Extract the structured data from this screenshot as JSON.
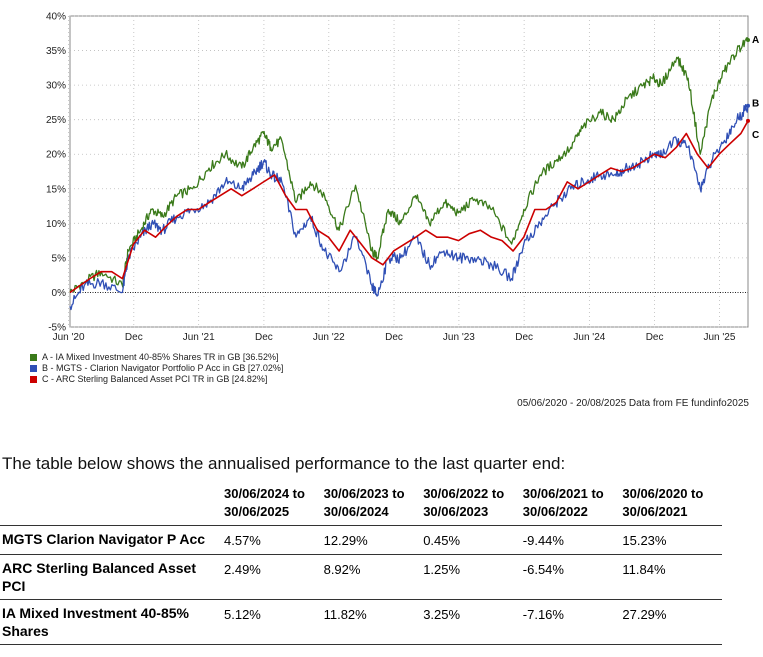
{
  "chart_data": {
    "type": "line",
    "ylim": [
      -5,
      40
    ],
    "y_ticks": [
      "40%",
      "35%",
      "30%",
      "25%",
      "20%",
      "15%",
      "10%",
      "5%",
      "0%",
      "-5%"
    ],
    "y_tick_values": [
      40,
      35,
      30,
      25,
      20,
      15,
      10,
      5,
      0,
      -5
    ],
    "x_ticks": [
      "Jun '20",
      "Dec",
      "Jun '21",
      "Dec",
      "Jun '22",
      "Dec",
      "Jun '23",
      "Dec",
      "Jun '24",
      "Dec",
      "Jun '25"
    ],
    "x_tick_values": [
      "2020-06",
      "2020-12",
      "2021-06",
      "2021-12",
      "2022-06",
      "2022-12",
      "2023-06",
      "2023-12",
      "2024-06",
      "2024-12",
      "2025-06"
    ],
    "x_range": [
      "2020-06-05",
      "2025-08-20"
    ],
    "grid": "dotted",
    "legend_position": "below",
    "series": [
      {
        "label": "A",
        "name": "A - IA Mixed Investment 40-85% Shares TR in GB [36.52%]",
        "color": "#3a7a1a",
        "points": [
          [
            "2020-06-05",
            0
          ],
          [
            "2020-07-15",
            1.5
          ],
          [
            "2020-09-01",
            3
          ],
          [
            "2020-10-30",
            1
          ],
          [
            "2020-11-15",
            6
          ],
          [
            "2020-12-20",
            9
          ],
          [
            "2021-01-20",
            12
          ],
          [
            "2021-02-20",
            11
          ],
          [
            "2021-04-01",
            14
          ],
          [
            "2021-05-15",
            15
          ],
          [
            "2021-06-30",
            18
          ],
          [
            "2021-08-15",
            20
          ],
          [
            "2021-09-30",
            18
          ],
          [
            "2021-11-01",
            21
          ],
          [
            "2021-11-30",
            23
          ],
          [
            "2021-12-20",
            21
          ],
          [
            "2022-01-20",
            22
          ],
          [
            "2022-03-01",
            13
          ],
          [
            "2022-04-10",
            16
          ],
          [
            "2022-05-20",
            14
          ],
          [
            "2022-06-30",
            9
          ],
          [
            "2022-08-15",
            15.5
          ],
          [
            "2022-09-30",
            6
          ],
          [
            "2022-10-15",
            5
          ],
          [
            "2022-11-15",
            12
          ],
          [
            "2022-12-20",
            10
          ],
          [
            "2023-01-30",
            14
          ],
          [
            "2023-03-10",
            10
          ],
          [
            "2023-04-20",
            13
          ],
          [
            "2023-05-30",
            11.5
          ],
          [
            "2023-07-15",
            13.5
          ],
          [
            "2023-09-01",
            12
          ],
          [
            "2023-10-27",
            7
          ],
          [
            "2023-11-30",
            12
          ],
          [
            "2024-01-15",
            17
          ],
          [
            "2024-02-28",
            19
          ],
          [
            "2024-04-10",
            21
          ],
          [
            "2024-05-15",
            24
          ],
          [
            "2024-06-30",
            26
          ],
          [
            "2024-08-10",
            25
          ],
          [
            "2024-09-15",
            28
          ],
          [
            "2024-10-30",
            30
          ],
          [
            "2024-11-30",
            31
          ],
          [
            "2024-12-20",
            30
          ],
          [
            "2025-02-01",
            34
          ],
          [
            "2025-03-05",
            31
          ],
          [
            "2025-04-08",
            20
          ],
          [
            "2025-05-10",
            28
          ],
          [
            "2025-06-15",
            32
          ],
          [
            "2025-07-20",
            35
          ],
          [
            "2025-08-20",
            36.52
          ]
        ]
      },
      {
        "label": "B",
        "name": "B - MGTS - Clarion Navigator Portfolio P Acc in GB [27.02%]",
        "color": "#2f4fb5",
        "points": [
          [
            "2020-06-05",
            -2
          ],
          [
            "2020-07-15",
            1
          ],
          [
            "2020-09-01",
            1.5
          ],
          [
            "2020-10-30",
            0
          ],
          [
            "2020-11-15",
            5
          ],
          [
            "2020-12-20",
            8
          ],
          [
            "2021-01-20",
            10
          ],
          [
            "2021-02-20",
            9
          ],
          [
            "2021-04-01",
            11
          ],
          [
            "2021-05-15",
            12
          ],
          [
            "2021-06-30",
            13
          ],
          [
            "2021-08-15",
            16
          ],
          [
            "2021-09-30",
            15
          ],
          [
            "2021-11-01",
            17
          ],
          [
            "2021-11-30",
            19
          ],
          [
            "2021-12-20",
            17
          ],
          [
            "2022-01-20",
            16
          ],
          [
            "2022-03-01",
            8
          ],
          [
            "2022-04-10",
            11
          ],
          [
            "2022-05-20",
            6
          ],
          [
            "2022-06-30",
            3
          ],
          [
            "2022-08-15",
            8
          ],
          [
            "2022-09-30",
            1
          ],
          [
            "2022-10-15",
            -0.5
          ],
          [
            "2022-11-15",
            5
          ],
          [
            "2022-12-20",
            5
          ],
          [
            "2023-01-30",
            8
          ],
          [
            "2023-03-10",
            4
          ],
          [
            "2023-04-20",
            6
          ],
          [
            "2023-05-30",
            5
          ],
          [
            "2023-07-15",
            5
          ],
          [
            "2023-09-01",
            4
          ],
          [
            "2023-10-27",
            2
          ],
          [
            "2023-11-30",
            7
          ],
          [
            "2024-01-15",
            10
          ],
          [
            "2024-02-28",
            13
          ],
          [
            "2024-04-10",
            15
          ],
          [
            "2024-05-15",
            16
          ],
          [
            "2024-06-30",
            17
          ],
          [
            "2024-08-10",
            17
          ],
          [
            "2024-09-15",
            18
          ],
          [
            "2024-10-30",
            19
          ],
          [
            "2024-11-30",
            20
          ],
          [
            "2024-12-20",
            20
          ],
          [
            "2025-02-01",
            22
          ],
          [
            "2025-03-05",
            21
          ],
          [
            "2025-04-08",
            15
          ],
          [
            "2025-05-10",
            19
          ],
          [
            "2025-06-15",
            22
          ],
          [
            "2025-07-20",
            25
          ],
          [
            "2025-08-20",
            27.02
          ]
        ]
      },
      {
        "label": "C",
        "name": "C - ARC Sterling Balanced Asset PCI TR in GB [24.82%]",
        "color": "#cc0000",
        "points": [
          [
            "2020-06-05",
            0
          ],
          [
            "2020-07-31",
            2
          ],
          [
            "2020-08-31",
            3
          ],
          [
            "2020-09-30",
            3
          ],
          [
            "2020-10-30",
            2
          ],
          [
            "2020-11-30",
            7
          ],
          [
            "2020-12-31",
            9
          ],
          [
            "2021-01-31",
            8
          ],
          [
            "2021-02-28",
            9.5
          ],
          [
            "2021-03-31",
            11
          ],
          [
            "2021-04-30",
            12
          ],
          [
            "2021-05-31",
            12
          ],
          [
            "2021-06-30",
            13
          ],
          [
            "2021-07-31",
            14
          ],
          [
            "2021-08-31",
            15
          ],
          [
            "2021-09-30",
            14
          ],
          [
            "2021-10-31",
            15
          ],
          [
            "2021-11-30",
            16
          ],
          [
            "2021-12-31",
            17
          ],
          [
            "2022-01-31",
            14
          ],
          [
            "2022-02-28",
            12
          ],
          [
            "2022-03-31",
            12
          ],
          [
            "2022-04-30",
            9
          ],
          [
            "2022-05-31",
            8
          ],
          [
            "2022-06-30",
            6
          ],
          [
            "2022-07-31",
            9
          ],
          [
            "2022-08-31",
            7
          ],
          [
            "2022-09-30",
            5
          ],
          [
            "2022-10-31",
            4
          ],
          [
            "2022-11-30",
            6
          ],
          [
            "2022-12-31",
            7
          ],
          [
            "2023-01-31",
            8
          ],
          [
            "2023-02-28",
            9
          ],
          [
            "2023-03-31",
            8
          ],
          [
            "2023-04-30",
            8
          ],
          [
            "2023-05-31",
            7.5
          ],
          [
            "2023-06-30",
            8.5
          ],
          [
            "2023-07-31",
            9
          ],
          [
            "2023-08-31",
            8
          ],
          [
            "2023-09-30",
            7.5
          ],
          [
            "2023-10-31",
            6
          ],
          [
            "2023-11-30",
            8
          ],
          [
            "2023-12-31",
            12
          ],
          [
            "2024-01-31",
            12
          ],
          [
            "2024-02-29",
            13
          ],
          [
            "2024-03-31",
            16
          ],
          [
            "2024-04-30",
            15
          ],
          [
            "2024-05-31",
            16
          ],
          [
            "2024-06-30",
            17
          ],
          [
            "2024-07-31",
            18
          ],
          [
            "2024-08-31",
            17.5
          ],
          [
            "2024-09-30",
            18
          ],
          [
            "2024-10-31",
            19
          ],
          [
            "2024-11-30",
            20
          ],
          [
            "2024-12-31",
            19.5
          ],
          [
            "2025-01-31",
            21
          ],
          [
            "2025-02-28",
            23
          ],
          [
            "2025-03-31",
            20
          ],
          [
            "2025-04-30",
            18
          ],
          [
            "2025-05-31",
            20
          ],
          [
            "2025-06-30",
            21.5
          ],
          [
            "2025-07-31",
            23
          ],
          [
            "2025-08-20",
            24.82
          ]
        ]
      }
    ]
  },
  "legend": [
    {
      "text": "A - IA Mixed Investment 40-85% Shares TR in GB [36.52%]",
      "color": "#3a7a1a"
    },
    {
      "text": "B - MGTS - Clarion Navigator Portfolio P Acc in GB [27.02%]",
      "color": "#2f4fb5"
    },
    {
      "text": "C - ARC Sterling Balanced Asset PCI TR in GB [24.82%]",
      "color": "#cc0000"
    }
  ],
  "source_note": "05/06/2020 - 20/08/2025 Data from FE fundinfo2025",
  "table_intro": "The table below shows the annualised performance to the last quarter end:",
  "table": {
    "headers": [
      "30/06/2024 to 30/06/2025",
      "30/06/2023 to 30/06/2024",
      "30/06/2022 to 30/06/2023",
      "30/06/2021 to 30/06/2022",
      "30/06/2020 to 30/06/2021"
    ],
    "rows": [
      {
        "name": "MGTS Clarion Navigator P Acc",
        "values": [
          "4.57%",
          "12.29%",
          "0.45%",
          "-9.44%",
          "15.23%"
        ]
      },
      {
        "name": "ARC Sterling Balanced Asset PCI",
        "values": [
          "2.49%",
          "8.92%",
          "1.25%",
          "-6.54%",
          "11.84%"
        ]
      },
      {
        "name": "IA Mixed Investment 40-85% Shares",
        "values": [
          "5.12%",
          "11.82%",
          "3.25%",
          "-7.16%",
          "27.29%"
        ]
      }
    ]
  }
}
